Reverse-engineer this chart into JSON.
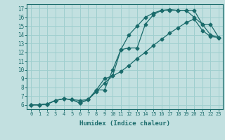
{
  "xlabel": "Humidex (Indice chaleur)",
  "ylabel": "",
  "bg_color": "#c2e0e0",
  "grid_color": "#9ecece",
  "line_color": "#1a6b6b",
  "xlim": [
    -0.5,
    23.5
  ],
  "ylim": [
    5.5,
    17.5
  ],
  "xticks": [
    0,
    1,
    2,
    3,
    4,
    5,
    6,
    7,
    8,
    9,
    10,
    11,
    12,
    13,
    14,
    15,
    16,
    17,
    18,
    19,
    20,
    21,
    22,
    23
  ],
  "yticks": [
    6,
    7,
    8,
    9,
    10,
    11,
    12,
    13,
    14,
    15,
    16,
    17
  ],
  "line_diag_x": [
    0,
    1,
    2,
    3,
    4,
    5,
    6,
    7,
    8,
    9,
    10,
    11,
    12,
    13,
    14,
    15,
    16,
    17,
    18,
    19,
    20,
    21,
    22,
    23
  ],
  "line_diag_y": [
    6.0,
    6.0,
    6.1,
    6.5,
    6.7,
    6.6,
    6.5,
    6.6,
    7.5,
    8.5,
    9.3,
    9.8,
    10.5,
    11.3,
    12.0,
    12.8,
    13.5,
    14.2,
    14.8,
    15.4,
    15.8,
    14.5,
    13.8,
    13.7
  ],
  "line_steep_x": [
    0,
    1,
    2,
    3,
    4,
    5,
    6,
    7,
    8,
    9,
    10,
    11,
    12,
    13,
    14,
    15,
    16,
    17,
    18,
    19,
    20,
    21,
    22,
    23
  ],
  "line_steep_y": [
    6.0,
    6.0,
    6.1,
    6.5,
    6.7,
    6.6,
    6.2,
    6.6,
    7.7,
    7.7,
    10.0,
    12.3,
    14.0,
    15.0,
    16.0,
    16.5,
    16.8,
    16.8,
    16.8,
    16.8,
    16.0,
    15.2,
    14.0,
    13.7
  ],
  "line_upper_x": [
    0,
    1,
    2,
    3,
    4,
    5,
    6,
    7,
    8,
    9,
    10,
    11,
    12,
    13,
    14,
    15,
    16,
    17,
    18,
    19,
    20,
    21,
    22,
    23
  ],
  "line_upper_y": [
    6.0,
    6.0,
    6.1,
    6.5,
    6.7,
    6.6,
    6.2,
    6.6,
    7.7,
    9.0,
    9.3,
    12.3,
    12.5,
    12.5,
    15.2,
    16.3,
    16.8,
    16.9,
    16.8,
    16.8,
    16.8,
    15.2,
    15.2,
    13.7
  ]
}
